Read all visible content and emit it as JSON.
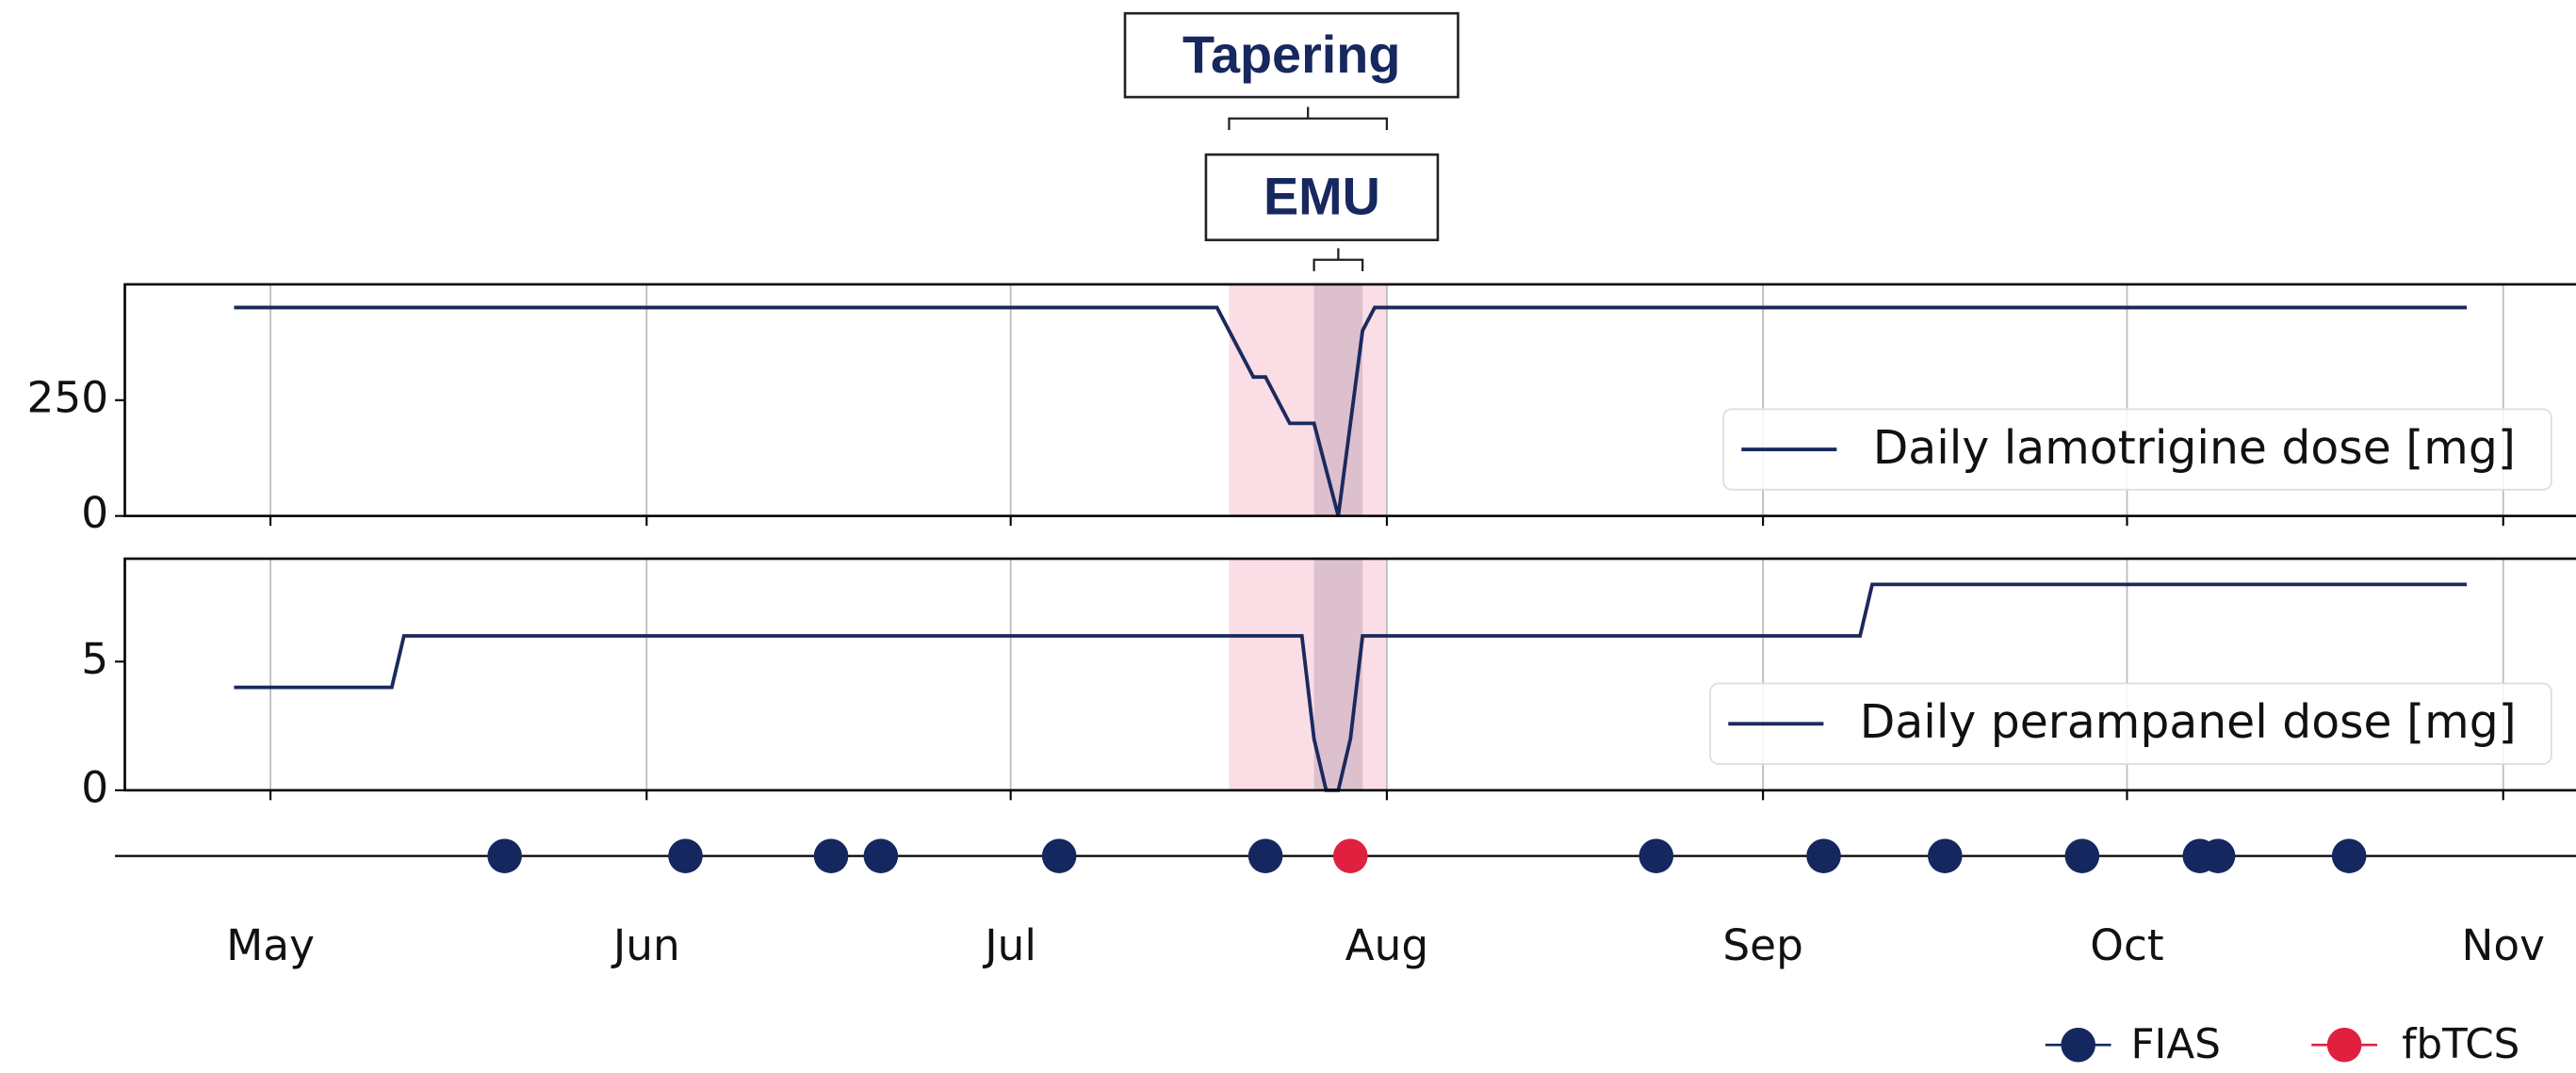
{
  "chart_data": [
    {
      "type": "line",
      "spans": [
        {
          "label": "Tapering",
          "x": [
            79,
            92
          ],
          "color": "#f9d9e2"
        },
        {
          "label": "EMU",
          "x": [
            86,
            90
          ],
          "color": "#d8bccb"
        }
      ],
      "series": [
        {
          "name": "Daily lamotrigine dose [mg]",
          "color": "#1a2a5e",
          "x": [
            -3,
            78,
            81,
            82,
            84,
            86,
            88,
            90,
            91,
            181
          ],
          "values": [
            450,
            450,
            300,
            300,
            200,
            200,
            0,
            400,
            450,
            450
          ]
        }
      ],
      "ylim": [
        0,
        500
      ],
      "yticks": [
        0,
        250
      ],
      "grid": true,
      "legend": "lower right"
    },
    {
      "type": "line",
      "series": [
        {
          "name": "Daily perampanel dose [mg]",
          "color": "#1a2a5e",
          "x": [
            -3,
            10,
            11,
            85,
            86,
            87,
            88,
            89,
            90,
            131,
            132,
            181
          ],
          "values": [
            4,
            4,
            6,
            6,
            2,
            0,
            0,
            2,
            6,
            6,
            8,
            8
          ]
        }
      ],
      "ylim": [
        0,
        9
      ],
      "yticks": [
        0,
        5
      ],
      "grid": true,
      "legend": "lower right"
    },
    {
      "type": "events",
      "xlim": [
        -12,
        190
      ],
      "xticks": [
        {
          "value": 0,
          "label": "May"
        },
        {
          "value": 31,
          "label": "Jun"
        },
        {
          "value": 61,
          "label": "Jul"
        },
        {
          "value": 92,
          "label": "Aug"
        },
        {
          "value": 123,
          "label": "Sep"
        },
        {
          "value": 153,
          "label": "Oct"
        },
        {
          "value": 184,
          "label": "Nov"
        }
      ],
      "series": [
        {
          "name": "FIAS",
          "color": "#15275f",
          "x": [
            19.3,
            34.2,
            46.2,
            50.3,
            65,
            82,
            114.2,
            128,
            138,
            149.3,
            159,
            160.5,
            171.3
          ]
        },
        {
          "name": "fbTCS",
          "color": "#e0203f",
          "x": [
            89
          ]
        }
      ],
      "legend": "lower right"
    }
  ]
}
